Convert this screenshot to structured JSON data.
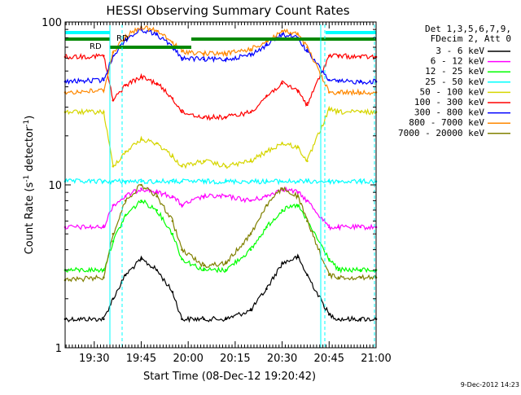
{
  "chart_data": {
    "type": "line",
    "title": "HESSI Observing Summary Count Rates",
    "xlabel": "Start Time (08-Dec-12 19:20:42)",
    "ylabel_main": "Count Rate (s",
    "ylabel_sup": "-1",
    "ylabel_rest": " detector",
    "ylabel_end": ")",
    "y_scale": "log",
    "ylim": [
      1,
      100
    ],
    "xlim": [
      "19:20:42",
      "21:00:00"
    ],
    "y_ticks": [
      "1",
      "10",
      "100"
    ],
    "x_ticks": [
      "19:30",
      "19:45",
      "20:00",
      "20:15",
      "20:30",
      "20:45",
      "21:00"
    ],
    "legend_header": [
      "Det 1,3,5,6,7,9,",
      "FDecim 2, Att 0"
    ],
    "legend_position": "right",
    "timestamp": "9-Dec-2012 14:23",
    "annotations": [
      "RD",
      "RD"
    ],
    "series": [
      {
        "name": "3 - 6 keV",
        "color": "#000000",
        "x": [
          "19:20:42",
          "19:33",
          "19:36",
          "19:40",
          "19:45",
          "19:50",
          "19:55",
          "19:58",
          "20:05",
          "20:12",
          "20:20",
          "20:25",
          "20:30",
          "20:35",
          "20:38",
          "20:45",
          "20:48",
          "20:55",
          "21:00"
        ],
        "values": [
          1.5,
          1.5,
          2.0,
          2.8,
          3.5,
          3.0,
          2.2,
          1.5,
          1.5,
          1.5,
          1.7,
          2.3,
          3.3,
          3.6,
          2.8,
          1.6,
          1.5,
          1.5,
          1.5
        ]
      },
      {
        "name": "6 - 12 keV",
        "color": "#ff00ff",
        "x": [
          "19:20:42",
          "19:33",
          "19:36",
          "19:40",
          "19:45",
          "19:50",
          "19:55",
          "19:58",
          "20:05",
          "20:12",
          "20:20",
          "20:25",
          "20:30",
          "20:35",
          "20:38",
          "20:45",
          "20:48",
          "20:55",
          "21:00"
        ],
        "values": [
          5.5,
          5.5,
          7.5,
          8.5,
          9.5,
          9.0,
          8.5,
          7.5,
          8.5,
          8.5,
          8.0,
          8.5,
          9.5,
          9.0,
          8.0,
          5.5,
          5.5,
          5.5,
          5.5
        ]
      },
      {
        "name": "12 - 25 keV",
        "color": "#00ff00",
        "x": [
          "19:20:42",
          "19:33",
          "19:36",
          "19:40",
          "19:45",
          "19:50",
          "19:55",
          "19:58",
          "20:05",
          "20:12",
          "20:20",
          "20:25",
          "20:30",
          "20:35",
          "20:38",
          "20:45",
          "20:48",
          "20:55",
          "21:00"
        ],
        "values": [
          3.0,
          3.0,
          4.5,
          6.5,
          8.0,
          7.0,
          5.0,
          3.5,
          3.0,
          3.0,
          4.0,
          5.5,
          7.0,
          7.5,
          6.0,
          3.5,
          3.0,
          3.0,
          3.0
        ]
      },
      {
        "name": "25 - 50 keV",
        "color": "#00ffff",
        "x": [
          "19:20:42",
          "19:33",
          "19:36",
          "19:40",
          "19:45",
          "19:50",
          "19:55",
          "19:58",
          "20:05",
          "20:12",
          "20:20",
          "20:25",
          "20:30",
          "20:35",
          "20:38",
          "20:45",
          "20:48",
          "20:55",
          "21:00"
        ],
        "values": [
          10.5,
          10.5,
          10.5,
          10.5,
          10.5,
          10.5,
          10.5,
          10.5,
          10.5,
          10.5,
          10.5,
          10.5,
          10.5,
          10.5,
          10.5,
          10.5,
          10.5,
          10.5,
          10.5
        ]
      },
      {
        "name": "50 - 100 keV",
        "color": "#d6d600",
        "x": [
          "19:20:42",
          "19:33",
          "19:36",
          "19:40",
          "19:45",
          "19:50",
          "19:55",
          "19:58",
          "20:05",
          "20:12",
          "20:20",
          "20:25",
          "20:30",
          "20:35",
          "20:38",
          "20:45",
          "20:48",
          "20:55",
          "21:00"
        ],
        "values": [
          28,
          28,
          13,
          16,
          19,
          18,
          15,
          13,
          14,
          13,
          14,
          16,
          18,
          17,
          14,
          29,
          28,
          28,
          28
        ]
      },
      {
        "name": "100 - 300 keV",
        "color": "#ff0000",
        "x": [
          "19:20:42",
          "19:33",
          "19:36",
          "19:40",
          "19:45",
          "19:50",
          "19:55",
          "19:58",
          "20:05",
          "20:12",
          "20:20",
          "20:25",
          "20:30",
          "20:35",
          "20:38",
          "20:45",
          "20:48",
          "20:55",
          "21:00"
        ],
        "values": [
          61,
          62,
          33,
          41,
          46,
          42,
          34,
          28,
          26,
          26,
          28,
          35,
          42,
          38,
          31,
          62,
          62,
          61,
          61
        ]
      },
      {
        "name": "300 - 800 keV",
        "color": "#0000ff",
        "x": [
          "19:20:42",
          "19:33",
          "19:36",
          "19:40",
          "19:45",
          "19:50",
          "19:55",
          "19:58",
          "20:05",
          "20:12",
          "20:20",
          "20:25",
          "20:30",
          "20:35",
          "20:38",
          "20:45",
          "20:48",
          "20:55",
          "21:00"
        ],
        "values": [
          43,
          44,
          62,
          78,
          90,
          84,
          70,
          60,
          59,
          59,
          63,
          72,
          84,
          80,
          66,
          44,
          43,
          43,
          43
        ]
      },
      {
        "name": "800 - 7000 keV",
        "color": "#ff8800",
        "x": [
          "19:20:42",
          "19:33",
          "19:36",
          "19:40",
          "19:45",
          "19:50",
          "19:55",
          "19:58",
          "20:05",
          "20:12",
          "20:20",
          "20:25",
          "20:30",
          "20:35",
          "20:38",
          "20:45",
          "20:48",
          "20:55",
          "21:00"
        ],
        "values": [
          37,
          38,
          65,
          82,
          93,
          88,
          75,
          66,
          64,
          64,
          68,
          76,
          88,
          84,
          70,
          37,
          37,
          37,
          37
        ]
      },
      {
        "name": "7000 - 20000 keV",
        "color": "#808000",
        "x": [
          "19:20:42",
          "19:33",
          "19:36",
          "19:40",
          "19:45",
          "19:50",
          "19:55",
          "19:58",
          "20:05",
          "20:12",
          "20:20",
          "20:25",
          "20:30",
          "20:35",
          "20:38",
          "20:45",
          "20:48",
          "20:55",
          "21:00"
        ],
        "values": [
          2.6,
          2.7,
          5.0,
          8.0,
          10.0,
          8.5,
          6.0,
          4.0,
          3.2,
          3.3,
          5.0,
          7.5,
          9.5,
          8.5,
          6.0,
          2.8,
          2.7,
          2.7,
          2.7
        ]
      }
    ]
  }
}
